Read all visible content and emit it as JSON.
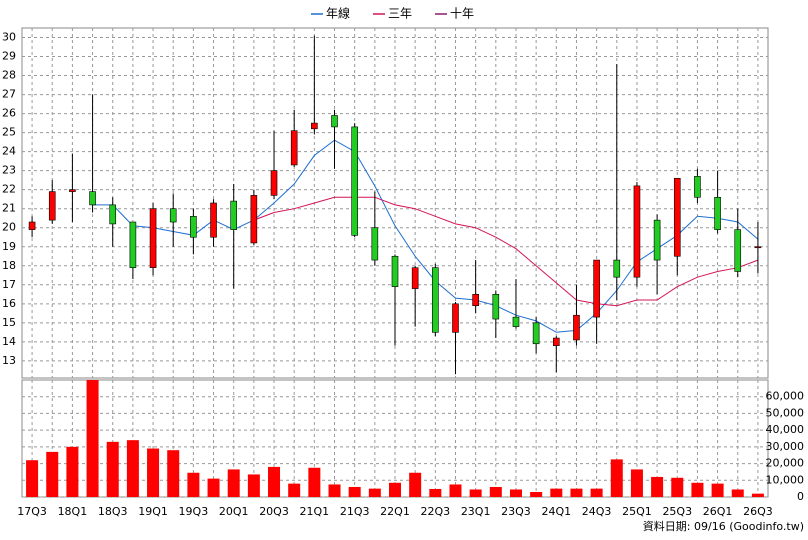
{
  "chart_data": [
    {
      "type": "candlestick",
      "legend": "top",
      "up_color": "#ff0000",
      "down_color": "#22cc22",
      "open": [
        19.9,
        20.4,
        21.9,
        21.9,
        21.2,
        20.3,
        17.9,
        21.0,
        20.6,
        19.5,
        21.4,
        19.2,
        21.7,
        23.3,
        25.2,
        25.9,
        25.3,
        20.0,
        18.5,
        16.8,
        17.9,
        14.5,
        15.9,
        16.5,
        15.3,
        15.0,
        13.8,
        14.1,
        15.3,
        18.3,
        17.4,
        20.4,
        18.5,
        22.7,
        21.6,
        19.9,
        19.0
      ],
      "high": [
        20.6,
        22.5,
        23.9,
        27.0,
        21.6,
        20.3,
        21.3,
        21.8,
        21.0,
        21.5,
        22.3,
        22.0,
        25.1,
        26.2,
        30.1,
        26.2,
        25.5,
        21.9,
        18.6,
        18.0,
        18.1,
        16.1,
        18.3,
        16.7,
        17.3,
        15.3,
        14.3,
        17.0,
        18.3,
        28.6,
        22.4,
        20.7,
        22.6,
        23.1,
        23.0,
        21.0,
        20.3
      ],
      "low": [
        19.5,
        20.2,
        20.3,
        20.8,
        19.0,
        17.3,
        17.5,
        19.0,
        18.6,
        19.0,
        16.8,
        19.1,
        21.5,
        23.2,
        24.9,
        23.1,
        19.5,
        18.0,
        13.8,
        14.8,
        14.3,
        12.3,
        15.5,
        14.2,
        14.7,
        13.4,
        12.4,
        13.8,
        13.9,
        16.2,
        16.9,
        16.5,
        17.5,
        21.3,
        19.7,
        17.4,
        17.6
      ],
      "close": [
        20.3,
        21.9,
        22.0,
        21.2,
        20.2,
        17.9,
        21.0,
        20.3,
        19.5,
        21.3,
        19.9,
        21.7,
        23.0,
        25.1,
        25.5,
        25.3,
        19.6,
        18.3,
        16.9,
        17.9,
        14.5,
        16.0,
        16.5,
        15.2,
        14.8,
        13.9,
        14.2,
        15.4,
        18.3,
        17.4,
        22.2,
        18.3,
        22.6,
        21.6,
        19.9,
        17.7,
        19.0
      ],
      "series": [
        {
          "name": "年線",
          "color": "#1e6fd0",
          "values": [
            null,
            null,
            null,
            21.2,
            21.2,
            20.1,
            20.0,
            19.8,
            19.6,
            20.4,
            19.9,
            20.4,
            21.3,
            22.3,
            23.8,
            24.6,
            24.0,
            22.2,
            20.1,
            18.5,
            17.2,
            16.3,
            16.2,
            15.9,
            15.4,
            15.1,
            14.5,
            14.6,
            15.5,
            16.7,
            18.2,
            18.9,
            19.6,
            20.6,
            20.5,
            20.3,
            19.4
          ]
        },
        {
          "name": "三年",
          "color": "#d4145a",
          "values": [
            null,
            null,
            null,
            null,
            null,
            null,
            null,
            null,
            null,
            null,
            null,
            20.4,
            20.8,
            21.0,
            21.3,
            21.6,
            21.6,
            21.6,
            21.2,
            21.0,
            20.6,
            20.2,
            20.0,
            19.5,
            18.9,
            18.0,
            17.1,
            16.2,
            16.0,
            15.9,
            16.2,
            16.2,
            16.9,
            17.4,
            17.7,
            17.9,
            18.3
          ]
        },
        {
          "name": "十年",
          "color": "#8b1a6b",
          "values": [
            null,
            null,
            null,
            null,
            null,
            null,
            null,
            null,
            null,
            null,
            null,
            null,
            null,
            null,
            null,
            null,
            null,
            null,
            null,
            null,
            null,
            null,
            null,
            null,
            null,
            null,
            null,
            null,
            null,
            null,
            null,
            null,
            null,
            null,
            null,
            null,
            null
          ]
        }
      ],
      "ylim": [
        12.1,
        30.5
      ],
      "yticks": [
        13,
        14,
        15,
        16,
        17,
        18,
        19,
        20,
        21,
        22,
        23,
        24,
        25,
        26,
        27,
        28,
        29,
        30
      ],
      "grid": true
    },
    {
      "type": "bar",
      "color": "#ff0000",
      "categories": [
        "17Q3",
        null,
        "18Q1",
        null,
        "18Q3",
        null,
        "19Q1",
        null,
        "19Q3",
        null,
        "20Q1",
        null,
        "20Q3",
        null,
        "21Q1",
        null,
        "21Q3",
        null,
        "22Q1",
        null,
        "22Q3",
        null,
        "23Q1",
        null,
        "23Q3",
        null,
        "24Q1",
        null,
        "24Q3",
        null,
        "25Q1",
        null,
        "25Q3",
        null,
        "26Q1",
        null,
        "26Q3"
      ],
      "values": [
        22000,
        27000,
        30000,
        70000,
        33000,
        34000,
        29000,
        28000,
        14500,
        11000,
        16500,
        13500,
        18000,
        8000,
        17500,
        7500,
        6000,
        5000,
        8500,
        14500,
        4800,
        7500,
        4500,
        6000,
        4500,
        3000,
        5000,
        5000,
        5000,
        22500,
        16500,
        12000,
        11500,
        8500,
        8000,
        4500,
        2000
      ],
      "ylim": [
        0,
        70000
      ],
      "yticks": [
        0,
        {
          "value": 10000,
          "label": "10,000"
        },
        {
          "value": 20000,
          "label": "20,000"
        },
        {
          "value": 30000,
          "label": "30,000"
        },
        {
          "value": 40000,
          "label": "40,000"
        },
        {
          "value": 50000,
          "label": "50,000"
        },
        {
          "value": 60000,
          "label": "60,000"
        }
      ],
      "grid": true
    }
  ],
  "footer": "資料日期: 09/16 (Goodinfo.tw)"
}
